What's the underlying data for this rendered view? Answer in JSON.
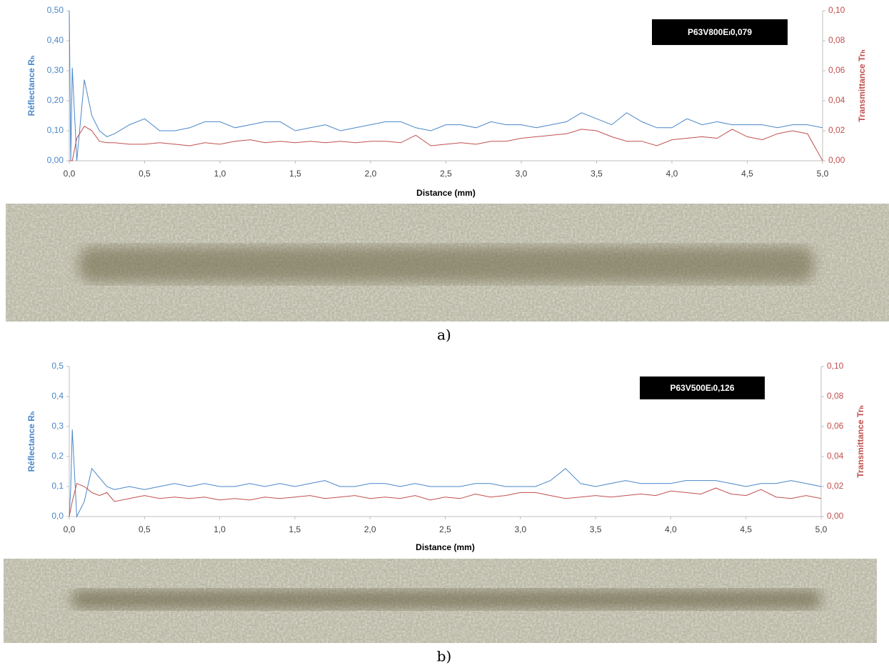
{
  "chart_data": [
    {
      "type": "line",
      "annotation": "P63V800Eₗ0,079",
      "xlabel": "Distance (mm)",
      "ylabel": "Réflectance Rₕ",
      "y2label": "Transmittance Trₕ",
      "caption": "a)",
      "x": [
        0,
        0.01,
        0.02,
        0.05,
        0.1,
        0.15,
        0.2,
        0.25,
        0.3,
        0.4,
        0.5,
        0.6,
        0.7,
        0.8,
        0.9,
        1,
        1.1,
        1.2,
        1.3,
        1.4,
        1.5,
        1.6,
        1.7,
        1.8,
        1.9,
        2,
        2.1,
        2.2,
        2.3,
        2.4,
        2.5,
        2.6,
        2.7,
        2.8,
        2.9,
        3,
        3.1,
        3.2,
        3.3,
        3.4,
        3.5,
        3.6,
        3.7,
        3.8,
        3.9,
        4,
        4.1,
        4.2,
        4.3,
        4.4,
        4.5,
        4.6,
        4.7,
        4.8,
        4.9,
        5
      ],
      "xlim": [
        0,
        5
      ],
      "xticks": [
        {
          "value": 0,
          "label": "0,0"
        },
        {
          "value": 0.5,
          "label": "0,5"
        },
        {
          "value": 1,
          "label": "1,0"
        },
        {
          "value": 1.5,
          "label": "1,5"
        },
        {
          "value": 2,
          "label": "2,0"
        },
        {
          "value": 2.5,
          "label": "2,5"
        },
        {
          "value": 3,
          "label": "3,0"
        },
        {
          "value": 3.5,
          "label": "3,5"
        },
        {
          "value": 4,
          "label": "4,0"
        },
        {
          "value": 4.5,
          "label": "4,5"
        },
        {
          "value": 5,
          "label": "5,0"
        }
      ],
      "ylim": [
        0,
        0.5
      ],
      "yticks": [
        {
          "value": 0,
          "label": "0,00"
        },
        {
          "value": 0.1,
          "label": "0,10"
        },
        {
          "value": 0.2,
          "label": "0,20"
        },
        {
          "value": 0.3,
          "label": "0,30"
        },
        {
          "value": 0.4,
          "label": "0,40"
        },
        {
          "value": 0.5,
          "label": "0,50"
        }
      ],
      "y2lim": [
        0,
        0.1
      ],
      "y2ticks": [
        {
          "value": 0,
          "label": "0,00"
        },
        {
          "value": 0.02,
          "label": "0,02"
        },
        {
          "value": 0.04,
          "label": "0,04"
        },
        {
          "value": 0.06,
          "label": "0,06"
        },
        {
          "value": 0.08,
          "label": "0,08"
        },
        {
          "value": 0.1,
          "label": "0,10"
        }
      ],
      "series": [
        {
          "color": "#4a86c8",
          "values": [
            0.5,
            0,
            0.31,
            0,
            0.27,
            0.15,
            0.1,
            0.08,
            0.09,
            0.12,
            0.14,
            0.1,
            0.1,
            0.11,
            0.13,
            0.13,
            0.11,
            0.12,
            0.13,
            0.13,
            0.1,
            0.11,
            0.12,
            0.1,
            0.11,
            0.12,
            0.13,
            0.13,
            0.11,
            0.1,
            0.12,
            0.12,
            0.11,
            0.13,
            0.12,
            0.12,
            0.11,
            0.12,
            0.13,
            0.16,
            0.14,
            0.12,
            0.16,
            0.13,
            0.11,
            0.11,
            0.14,
            0.12,
            0.13,
            0.12,
            0.12,
            0.12,
            0.11,
            0.12,
            0.12,
            0.11
          ]
        },
        {
          "color": "#c0504d",
          "axis": "y2",
          "values": [
            0,
            0,
            0,
            0.015,
            0.023,
            0.02,
            0.013,
            0.012,
            0.012,
            0.011,
            0.011,
            0.012,
            0.011,
            0.01,
            0.012,
            0.011,
            0.013,
            0.014,
            0.012,
            0.013,
            0.012,
            0.013,
            0.012,
            0.013,
            0.012,
            0.013,
            0.013,
            0.012,
            0.017,
            0.01,
            0.011,
            0.012,
            0.011,
            0.013,
            0.013,
            0.015,
            0.016,
            0.017,
            0.018,
            0.021,
            0.02,
            0.016,
            0.013,
            0.013,
            0.01,
            0.014,
            0.015,
            0.016,
            0.015,
            0.021,
            0.016,
            0.014,
            0.018,
            0.02,
            0.018,
            0
          ]
        }
      ]
    },
    {
      "type": "line",
      "annotation": "P63V500Eₗ0,126",
      "xlabel": "Distance (mm)",
      "ylabel": "Réflectance Rₕ",
      "y2label": "Transmittance Trₕ",
      "caption": "b)",
      "x": [
        0,
        0.01,
        0.02,
        0.05,
        0.1,
        0.15,
        0.2,
        0.25,
        0.3,
        0.4,
        0.5,
        0.6,
        0.7,
        0.8,
        0.9,
        1,
        1.1,
        1.2,
        1.3,
        1.4,
        1.5,
        1.6,
        1.7,
        1.8,
        1.9,
        2,
        2.1,
        2.2,
        2.3,
        2.4,
        2.5,
        2.6,
        2.7,
        2.8,
        2.9,
        3,
        3.1,
        3.2,
        3.3,
        3.4,
        3.5,
        3.6,
        3.7,
        3.8,
        3.9,
        4,
        4.1,
        4.2,
        4.3,
        4.4,
        4.5,
        4.6,
        4.7,
        4.8,
        4.9,
        5
      ],
      "xlim": [
        0,
        5
      ],
      "xticks": [
        {
          "value": 0,
          "label": "0,0"
        },
        {
          "value": 0.5,
          "label": "0,5"
        },
        {
          "value": 1,
          "label": "1,0"
        },
        {
          "value": 1.5,
          "label": "1,5"
        },
        {
          "value": 2,
          "label": "2,0"
        },
        {
          "value": 2.5,
          "label": "2,5"
        },
        {
          "value": 3,
          "label": "3,0"
        },
        {
          "value": 3.5,
          "label": "3,5"
        },
        {
          "value": 4,
          "label": "4,0"
        },
        {
          "value": 4.5,
          "label": "4,5"
        },
        {
          "value": 5,
          "label": "5,0"
        }
      ],
      "ylim": [
        0,
        0.5
      ],
      "yticks": [
        {
          "value": 0,
          "label": "0,0"
        },
        {
          "value": 0.1,
          "label": "0,1"
        },
        {
          "value": 0.2,
          "label": "0,2"
        },
        {
          "value": 0.3,
          "label": "0,3"
        },
        {
          "value": 0.4,
          "label": "0,4"
        },
        {
          "value": 0.5,
          "label": "0,5"
        }
      ],
      "y2lim": [
        0,
        0.1
      ],
      "y2ticks": [
        {
          "value": 0,
          "label": "0,00"
        },
        {
          "value": 0.02,
          "label": "0,02"
        },
        {
          "value": 0.04,
          "label": "0,04"
        },
        {
          "value": 0.06,
          "label": "0,06"
        },
        {
          "value": 0.08,
          "label": "0,08"
        },
        {
          "value": 0.1,
          "label": "0,10"
        }
      ],
      "series": [
        {
          "color": "#4a86c8",
          "values": [
            0,
            0.1,
            0.29,
            0,
            0.05,
            0.16,
            0.13,
            0.1,
            0.09,
            0.1,
            0.09,
            0.1,
            0.11,
            0.1,
            0.11,
            0.1,
            0.1,
            0.11,
            0.1,
            0.11,
            0.1,
            0.11,
            0.12,
            0.1,
            0.1,
            0.11,
            0.11,
            0.1,
            0.11,
            0.1,
            0.1,
            0.1,
            0.11,
            0.11,
            0.1,
            0.1,
            0.1,
            0.12,
            0.16,
            0.11,
            0.1,
            0.11,
            0.12,
            0.11,
            0.11,
            0.11,
            0.12,
            0.12,
            0.12,
            0.11,
            0.1,
            0.11,
            0.11,
            0.12,
            0.11,
            0.1
          ]
        },
        {
          "color": "#c0504d",
          "axis": "y2",
          "values": [
            0,
            0.005,
            0.01,
            0.022,
            0.02,
            0.016,
            0.014,
            0.016,
            0.01,
            0.012,
            0.014,
            0.012,
            0.013,
            0.012,
            0.013,
            0.011,
            0.012,
            0.011,
            0.013,
            0.012,
            0.013,
            0.014,
            0.012,
            0.013,
            0.014,
            0.012,
            0.013,
            0.012,
            0.014,
            0.011,
            0.013,
            0.012,
            0.015,
            0.013,
            0.014,
            0.016,
            0.016,
            0.014,
            0.012,
            0.013,
            0.014,
            0.013,
            0.014,
            0.015,
            0.014,
            0.017,
            0.016,
            0.015,
            0.019,
            0.015,
            0.014,
            0.018,
            0.013,
            0.012,
            0.014,
            0.012
          ]
        }
      ]
    }
  ]
}
